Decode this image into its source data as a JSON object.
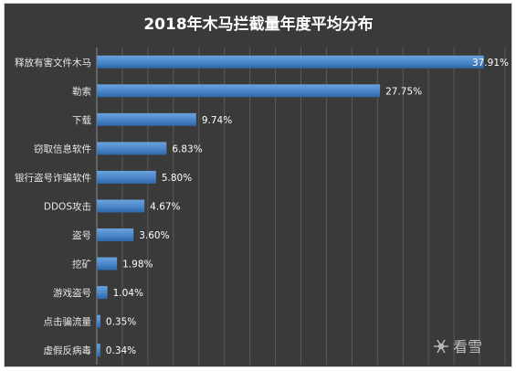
{
  "chart_data": {
    "type": "bar",
    "orientation": "horizontal",
    "title": "2018年木马拦截量年度平均分布",
    "categories": [
      "释放有害文件木马",
      "勒索",
      "下载",
      "窃取信息软件",
      "银行盗号诈骗软件",
      "DDOS攻击",
      "盗号",
      "挖矿",
      "游戏盗号",
      "点击骗流量",
      "虚假反病毒"
    ],
    "values": [
      37.91,
      27.75,
      9.74,
      6.83,
      5.8,
      4.67,
      3.6,
      1.98,
      1.04,
      0.35,
      0.34
    ],
    "value_labels": [
      "37.91%",
      "27.75%",
      "9.74%",
      "6.83%",
      "5.80%",
      "4.67%",
      "3.60%",
      "1.98%",
      "1.04%",
      "0.35%",
      "0.34%"
    ],
    "xlim": [
      0,
      40
    ],
    "grid": true,
    "colors": {
      "bar": "#4a86c8",
      "background": "#3a3a3a"
    }
  },
  "watermark": {
    "text": "看雪",
    "icon": "snowflake-icon"
  }
}
